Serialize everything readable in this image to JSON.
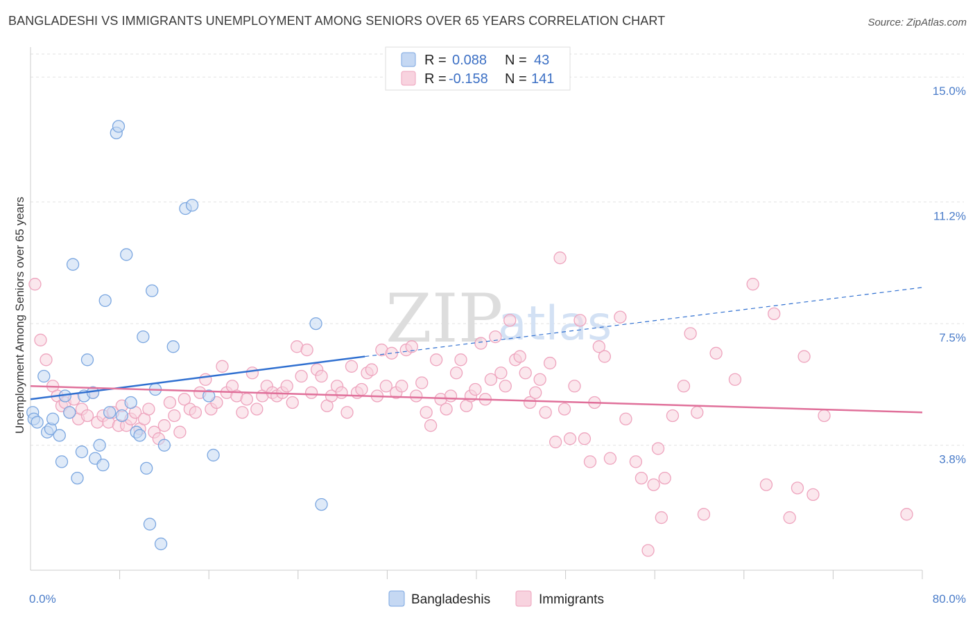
{
  "title": "BANGLADESHI VS IMMIGRANTS UNEMPLOYMENT AMONG SENIORS OVER 65 YEARS CORRELATION CHART",
  "source": "Source: ZipAtlas.com",
  "watermark": {
    "zip": "ZIP",
    "atlas": "atlas"
  },
  "legend": {
    "rows": [
      {
        "r_label": "R =",
        "r_value": "0.088",
        "n_label": "N =",
        "n_value": "43"
      },
      {
        "r_label": "R =",
        "r_value": "-0.158",
        "n_label": "N =",
        "n_value": "141"
      }
    ]
  },
  "bottom_legend": [
    "Bangladeshis",
    "Immigrants"
  ],
  "chart_data": {
    "type": "scatter",
    "ylabel": "Unemployment Among Seniors over 65 years",
    "xlabel": "",
    "xlim": [
      0,
      80
    ],
    "ylim": [
      0,
      15.7
    ],
    "x_tick_labels": [
      {
        "value": 0,
        "label": "0.0%"
      },
      {
        "value": 80,
        "label": "80.0%"
      }
    ],
    "y_ticks": [
      {
        "value": 3.8,
        "label": "3.8%"
      },
      {
        "value": 7.5,
        "label": "7.5%"
      },
      {
        "value": 11.2,
        "label": "11.2%"
      },
      {
        "value": 15.0,
        "label": "15.0%"
      }
    ],
    "x_minor_ticks": [
      8,
      16,
      24,
      32,
      40,
      48,
      56,
      64,
      72,
      80
    ],
    "grid": true,
    "legend_position": "top-center",
    "series": [
      {
        "name": "Bangladeshis",
        "color": "#7aa6e0",
        "fill": "#c5d8f3",
        "trend": {
          "x0": 0,
          "y0": 5.2,
          "x1": 30,
          "y1": 6.5,
          "dashed_to_x": 80,
          "dashed_to_y": 8.6,
          "color": "#2f6fd0"
        },
        "points": [
          [
            0.2,
            4.8
          ],
          [
            0.3,
            4.6
          ],
          [
            0.6,
            4.5
          ],
          [
            1.2,
            5.9
          ],
          [
            1.5,
            4.2
          ],
          [
            1.8,
            4.3
          ],
          [
            2.0,
            4.6
          ],
          [
            2.6,
            4.1
          ],
          [
            2.8,
            3.3
          ],
          [
            3.1,
            5.3
          ],
          [
            3.5,
            4.8
          ],
          [
            3.8,
            9.3
          ],
          [
            4.2,
            2.8
          ],
          [
            4.6,
            3.6
          ],
          [
            4.8,
            5.3
          ],
          [
            5.1,
            6.4
          ],
          [
            5.6,
            5.4
          ],
          [
            5.8,
            3.4
          ],
          [
            6.2,
            3.8
          ],
          [
            6.5,
            3.2
          ],
          [
            6.7,
            8.2
          ],
          [
            7.1,
            4.8
          ],
          [
            7.7,
            13.3
          ],
          [
            7.9,
            13.5
          ],
          [
            8.2,
            4.7
          ],
          [
            8.6,
            9.6
          ],
          [
            9.0,
            5.1
          ],
          [
            9.5,
            4.2
          ],
          [
            9.8,
            4.1
          ],
          [
            10.1,
            7.1
          ],
          [
            10.4,
            3.1
          ],
          [
            10.7,
            1.4
          ],
          [
            10.9,
            8.5
          ],
          [
            11.2,
            5.5
          ],
          [
            11.7,
            0.8
          ],
          [
            12.0,
            3.8
          ],
          [
            12.8,
            6.8
          ],
          [
            13.9,
            11.0
          ],
          [
            14.5,
            11.1
          ],
          [
            16.0,
            5.3
          ],
          [
            16.4,
            3.5
          ],
          [
            25.6,
            7.5
          ],
          [
            26.1,
            2.0
          ]
        ]
      },
      {
        "name": "Immigrants",
        "color": "#eea3bd",
        "fill": "#f8d3df",
        "trend": {
          "x0": 0,
          "y0": 5.6,
          "x1": 80,
          "y1": 4.8,
          "color": "#e0709a"
        },
        "points": [
          [
            0.4,
            8.7
          ],
          [
            0.9,
            7.0
          ],
          [
            1.4,
            6.4
          ],
          [
            2.0,
            5.6
          ],
          [
            2.4,
            5.3
          ],
          [
            2.8,
            5.0
          ],
          [
            3.1,
            5.1
          ],
          [
            3.5,
            4.8
          ],
          [
            3.9,
            5.2
          ],
          [
            4.3,
            4.6
          ],
          [
            4.6,
            4.9
          ],
          [
            5.1,
            4.7
          ],
          [
            5.6,
            5.4
          ],
          [
            6.0,
            4.5
          ],
          [
            6.5,
            4.7
          ],
          [
            7.0,
            4.5
          ],
          [
            7.4,
            4.8
          ],
          [
            7.9,
            4.4
          ],
          [
            8.2,
            5.0
          ],
          [
            8.6,
            4.4
          ],
          [
            9.0,
            4.6
          ],
          [
            9.4,
            4.8
          ],
          [
            9.8,
            4.3
          ],
          [
            10.2,
            4.6
          ],
          [
            10.6,
            4.9
          ],
          [
            11.1,
            4.2
          ],
          [
            11.5,
            4.0
          ],
          [
            12.0,
            4.4
          ],
          [
            12.5,
            5.1
          ],
          [
            12.9,
            4.7
          ],
          [
            13.4,
            4.2
          ],
          [
            13.8,
            5.2
          ],
          [
            14.3,
            4.9
          ],
          [
            14.8,
            4.8
          ],
          [
            15.2,
            5.4
          ],
          [
            15.7,
            5.8
          ],
          [
            16.2,
            4.9
          ],
          [
            16.7,
            5.1
          ],
          [
            17.2,
            6.2
          ],
          [
            17.6,
            5.4
          ],
          [
            18.1,
            5.6
          ],
          [
            18.5,
            5.3
          ],
          [
            19.0,
            4.8
          ],
          [
            19.4,
            5.2
          ],
          [
            19.9,
            6.0
          ],
          [
            20.3,
            4.9
          ],
          [
            20.8,
            5.3
          ],
          [
            21.2,
            5.6
          ],
          [
            21.7,
            5.4
          ],
          [
            22.1,
            5.3
          ],
          [
            22.6,
            5.4
          ],
          [
            23.0,
            5.6
          ],
          [
            23.5,
            5.1
          ],
          [
            23.9,
            6.8
          ],
          [
            24.3,
            5.9
          ],
          [
            24.8,
            6.7
          ],
          [
            25.2,
            5.4
          ],
          [
            25.7,
            6.1
          ],
          [
            26.1,
            5.9
          ],
          [
            26.6,
            5.0
          ],
          [
            27.0,
            5.3
          ],
          [
            27.5,
            5.6
          ],
          [
            27.9,
            5.4
          ],
          [
            28.4,
            4.8
          ],
          [
            28.8,
            6.2
          ],
          [
            29.3,
            5.4
          ],
          [
            29.7,
            5.5
          ],
          [
            30.2,
            6.0
          ],
          [
            30.6,
            6.1
          ],
          [
            31.1,
            5.3
          ],
          [
            31.5,
            6.7
          ],
          [
            31.9,
            5.6
          ],
          [
            32.4,
            6.6
          ],
          [
            32.8,
            5.4
          ],
          [
            33.3,
            5.6
          ],
          [
            33.7,
            6.7
          ],
          [
            34.2,
            6.8
          ],
          [
            34.6,
            5.3
          ],
          [
            35.1,
            5.7
          ],
          [
            35.5,
            4.8
          ],
          [
            35.9,
            4.4
          ],
          [
            36.4,
            6.4
          ],
          [
            36.8,
            5.2
          ],
          [
            37.3,
            4.9
          ],
          [
            37.7,
            5.3
          ],
          [
            38.2,
            6.0
          ],
          [
            38.6,
            6.4
          ],
          [
            39.1,
            5.0
          ],
          [
            39.5,
            5.3
          ],
          [
            39.9,
            5.5
          ],
          [
            40.4,
            6.9
          ],
          [
            40.8,
            5.2
          ],
          [
            41.3,
            5.8
          ],
          [
            41.7,
            7.1
          ],
          [
            42.2,
            6.0
          ],
          [
            42.6,
            5.6
          ],
          [
            43.0,
            7.6
          ],
          [
            43.5,
            6.4
          ],
          [
            43.9,
            6.5
          ],
          [
            44.4,
            6.0
          ],
          [
            44.8,
            5.1
          ],
          [
            45.3,
            5.4
          ],
          [
            45.7,
            5.8
          ],
          [
            46.2,
            4.8
          ],
          [
            46.6,
            6.3
          ],
          [
            47.1,
            3.9
          ],
          [
            47.5,
            9.5
          ],
          [
            47.9,
            4.9
          ],
          [
            48.4,
            4.0
          ],
          [
            48.8,
            5.6
          ],
          [
            49.3,
            7.6
          ],
          [
            49.7,
            4.0
          ],
          [
            50.2,
            3.3
          ],
          [
            50.6,
            5.1
          ],
          [
            51.0,
            6.8
          ],
          [
            51.5,
            6.5
          ],
          [
            52.0,
            3.4
          ],
          [
            52.9,
            7.7
          ],
          [
            53.4,
            4.6
          ],
          [
            54.3,
            3.3
          ],
          [
            54.8,
            2.8
          ],
          [
            55.4,
            0.6
          ],
          [
            55.9,
            2.6
          ],
          [
            56.3,
            3.7
          ],
          [
            56.6,
            1.6
          ],
          [
            56.9,
            2.8
          ],
          [
            57.6,
            4.7
          ],
          [
            58.6,
            5.6
          ],
          [
            59.2,
            7.2
          ],
          [
            59.8,
            4.8
          ],
          [
            60.4,
            1.7
          ],
          [
            61.5,
            6.6
          ],
          [
            63.2,
            5.8
          ],
          [
            64.8,
            8.7
          ],
          [
            66.0,
            2.6
          ],
          [
            66.7,
            7.8
          ],
          [
            68.1,
            1.6
          ],
          [
            68.8,
            2.5
          ],
          [
            69.4,
            6.5
          ],
          [
            70.2,
            2.3
          ],
          [
            71.2,
            4.7
          ],
          [
            78.6,
            1.7
          ]
        ]
      }
    ]
  }
}
